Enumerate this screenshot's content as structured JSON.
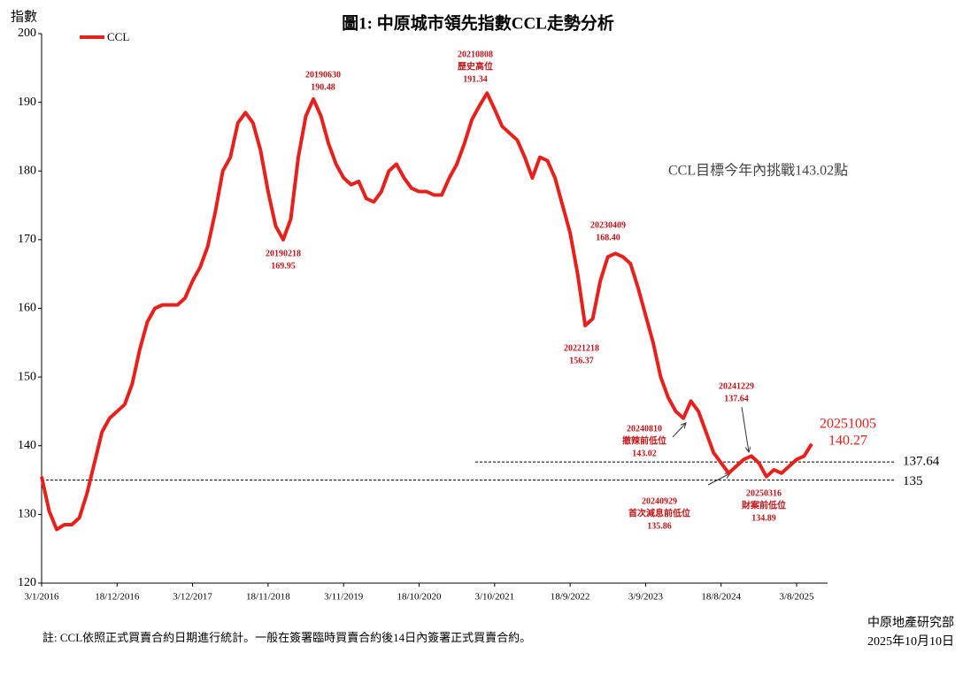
{
  "chart_data": {
    "type": "line",
    "title": "圖1: 中原城市領先指數CCL走勢分析",
    "y_label": "指數",
    "note": "CCL目標今年內挑戰143.02點",
    "footnote": "註: CCL依照正式買賣合約日期進行統計。一般在簽署臨時買賣合約後14日內簽署正式買賣合約。",
    "source": "中原地產研究部",
    "source_date": "2025年10月10日",
    "categories": [
      "3/1/2016",
      null,
      null,
      null,
      null,
      null,
      null,
      null,
      null,
      null,
      "18/12/2016",
      null,
      null,
      null,
      null,
      null,
      null,
      null,
      null,
      null,
      "3/12/2017",
      null,
      null,
      null,
      null,
      null,
      null,
      null,
      null,
      null,
      "18/11/2018",
      null,
      null,
      null,
      null,
      null,
      null,
      null,
      null,
      null,
      "3/11/2019",
      null,
      null,
      null,
      null,
      null,
      null,
      null,
      null,
      null,
      "18/10/2020",
      null,
      null,
      null,
      null,
      null,
      null,
      null,
      null,
      null,
      "3/10/2021",
      null,
      null,
      null,
      null,
      null,
      null,
      null,
      null,
      null,
      "18/9/2022",
      null,
      null,
      null,
      null,
      null,
      null,
      null,
      null,
      null,
      "3/9/2023",
      null,
      null,
      null,
      null,
      null,
      null,
      null,
      null,
      null,
      "18/8/2024",
      null,
      null,
      null,
      null,
      null,
      null,
      null,
      null,
      null,
      "3/8/2025",
      null,
      null
    ],
    "series": [
      {
        "name": "CCL",
        "color": "#e8201c",
        "values": [
          135.5,
          130.5,
          127.8,
          128.5,
          128.5,
          129.5,
          133,
          137.5,
          142,
          144,
          145,
          146,
          149,
          154,
          158,
          160,
          160.5,
          160.5,
          160.5,
          161.5,
          164,
          166,
          169,
          174,
          180,
          182,
          187,
          188.5,
          187,
          183,
          177,
          172,
          170,
          173,
          182,
          188,
          190.48,
          188,
          184,
          181,
          179,
          178,
          178.5,
          176,
          175.5,
          177,
          180,
          181,
          179,
          177.5,
          177,
          177,
          176.5,
          176.5,
          179,
          181,
          184,
          187.5,
          189.5,
          191.34,
          189,
          186.5,
          185.5,
          184.5,
          182,
          179,
          182,
          181.5,
          179,
          175,
          171,
          165,
          157.5,
          158.5,
          164,
          167.5,
          168,
          167.5,
          166.5,
          163,
          159,
          155,
          150,
          147,
          145,
          144,
          146.5,
          145,
          142,
          139,
          137.5,
          136,
          137,
          138,
          138.5,
          137.5,
          135.5,
          136.5,
          136,
          137,
          138,
          138.5,
          140.27
        ]
      }
    ],
    "hlines": [
      {
        "value": 137.64,
        "style": "dashed"
      },
      {
        "value": 135,
        "style": "dashed"
      }
    ],
    "annotations": [
      {
        "date": "20190630",
        "value": "190.48"
      },
      {
        "date": "20210808",
        "note": "歷史高位",
        "value": "191.34"
      },
      {
        "date": "20190218",
        "value": "169.95"
      },
      {
        "date": "20230409",
        "value": "168.40"
      },
      {
        "date": "20221218",
        "value": "156.37"
      },
      {
        "date": "20240810",
        "note": "撤辣前低位",
        "value": "143.02"
      },
      {
        "date": "20241229",
        "value": "137.64"
      },
      {
        "date": "20240929",
        "note": "首次減息前低位",
        "value": "135.86"
      },
      {
        "date": "20250316",
        "note": "財案前低位",
        "value": "134.89"
      },
      {
        "date": "20251005",
        "value": "140.27"
      }
    ],
    "ylim": [
      120,
      200
    ],
    "yticks": [
      120,
      130,
      140,
      150,
      160,
      170,
      180,
      190,
      200
    ],
    "legend": "top-left"
  }
}
